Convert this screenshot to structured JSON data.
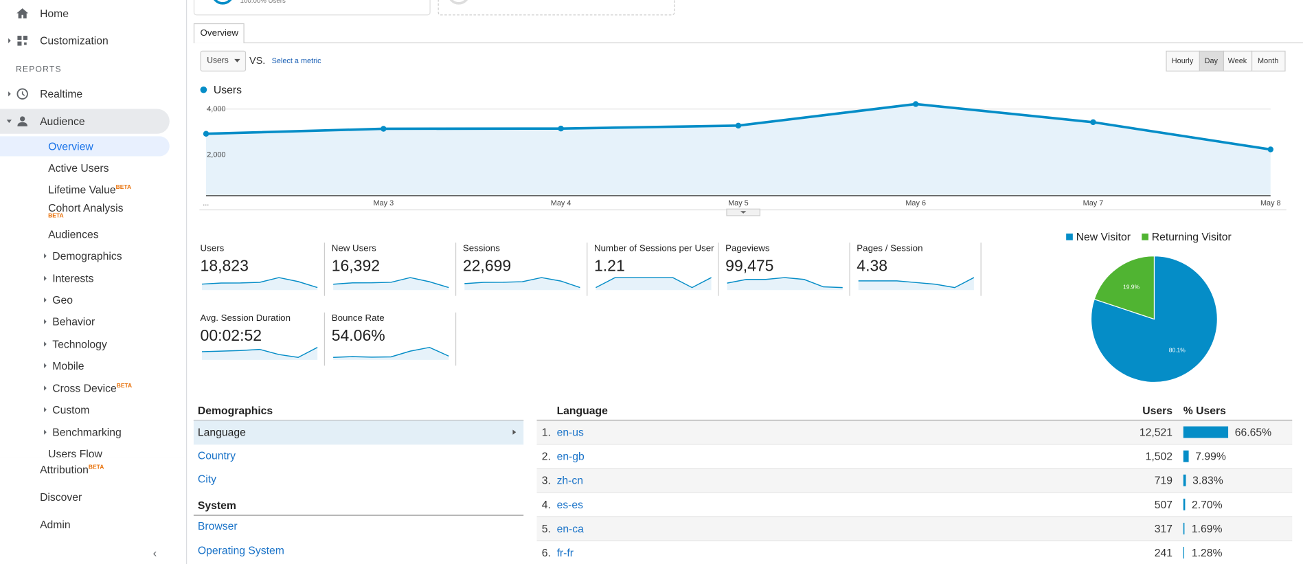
{
  "sidebar": {
    "items": [
      {
        "label": "Home"
      },
      {
        "label": "Customization"
      },
      {
        "label": "REPORTS"
      },
      {
        "label": "Realtime"
      },
      {
        "label": "Audience"
      },
      {
        "label": "Overview"
      },
      {
        "label": "Active Users"
      },
      {
        "label": "Lifetime Value",
        "badge": "BETA"
      },
      {
        "label": "Cohort Analysis",
        "badge": "BETA"
      },
      {
        "label": "Audiences"
      },
      {
        "label": "Demographics"
      },
      {
        "label": "Interests"
      },
      {
        "label": "Geo"
      },
      {
        "label": "Behavior"
      },
      {
        "label": "Technology"
      },
      {
        "label": "Mobile"
      },
      {
        "label": "Cross Device",
        "badge": "BETA"
      },
      {
        "label": "Custom"
      },
      {
        "label": "Benchmarking"
      },
      {
        "label": "Users Flow"
      },
      {
        "label": "Attribution",
        "badge": "BETA"
      },
      {
        "label": "Discover"
      },
      {
        "label": "Admin"
      }
    ]
  },
  "top_card": {
    "text": "100.00% Users"
  },
  "tab": "Overview",
  "controls": {
    "metric": "Users",
    "vs": "VS.",
    "select_metric": "Select a metric",
    "granularity": [
      "Hourly",
      "Day",
      "Week",
      "Month"
    ],
    "active_index": 1
  },
  "chart_data": [
    {
      "type": "line",
      "categories": [
        "...",
        "May 3",
        "May 4",
        "May 5",
        "May 6",
        "May 7",
        "May 8"
      ],
      "series": [
        {
          "name": "Users",
          "color": "#058dc7",
          "values": [
            2910,
            3130,
            3140,
            3270,
            4220,
            3420,
            2220
          ]
        }
      ],
      "ylim": [
        200,
        4300
      ],
      "yticks": [
        {
          "value": 2000,
          "label": "2,000"
        },
        {
          "value": 4000,
          "label": "4,000"
        }
      ],
      "grid": true
    },
    {
      "type": "pie",
      "categories": [
        "New Visitor",
        "Returning Visitor"
      ],
      "colors": [
        "#058dc7",
        "#50b432"
      ],
      "values": [
        80.1,
        19.9
      ],
      "value_labels": [
        "80.1%",
        "19.9%"
      ],
      "legend": "top"
    }
  ],
  "metrics": [
    {
      "label": "Users",
      "value": "18,823",
      "trend": [
        2910,
        3130,
        3140,
        3270,
        4220,
        3420,
        2220
      ]
    },
    {
      "label": "New Users",
      "value": "16,392",
      "trend": [
        2500,
        2750,
        2760,
        2850,
        3700,
        2950,
        1900
      ]
    },
    {
      "label": "Sessions",
      "value": "22,699",
      "trend": [
        3500,
        3800,
        3820,
        3950,
        4900,
        4100,
        2600
      ]
    },
    {
      "label": "Number of Sessions per User",
      "value": "1.21",
      "trend": [
        1.2,
        1.21,
        1.21,
        1.21,
        1.21,
        1.2,
        1.21
      ]
    },
    {
      "label": "Pageviews",
      "value": "99,475",
      "trend": [
        15000,
        16000,
        16000,
        16500,
        16000,
        14000,
        13800
      ]
    },
    {
      "label": "Pages / Session",
      "value": "4.38",
      "trend": [
        4.4,
        4.4,
        4.4,
        4.3,
        4.2,
        4.0,
        4.6
      ]
    },
    {
      "label": "Avg. Session Duration",
      "value": "00:02:52",
      "trend": [
        160,
        162,
        164,
        168,
        150,
        140,
        175
      ]
    },
    {
      "label": "Bounce Rate",
      "value": "54.06%",
      "trend": [
        53.5,
        53.8,
        53.6,
        53.7,
        56,
        57.5,
        54
      ]
    }
  ],
  "dimensions": {
    "groups": [
      {
        "title": "Demographics",
        "items": [
          "Language",
          "Country",
          "City"
        ]
      },
      {
        "title": "System",
        "items": [
          "Browser",
          "Operating System"
        ]
      }
    ]
  },
  "language_table": {
    "header": [
      "Language",
      "Users",
      "% Users"
    ],
    "rows": [
      {
        "rank": "1.",
        "language": "en-us",
        "users": "12,521",
        "share": 66.65,
        "share_label": "66.65%"
      },
      {
        "rank": "2.",
        "language": "en-gb",
        "users": "1,502",
        "share": 7.99,
        "share_label": "7.99%"
      },
      {
        "rank": "3.",
        "language": "zh-cn",
        "users": "719",
        "share": 3.83,
        "share_label": "3.83%"
      },
      {
        "rank": "4.",
        "language": "es-es",
        "users": "507",
        "share": 2.7,
        "share_label": "2.70%"
      },
      {
        "rank": "5.",
        "language": "en-ca",
        "users": "317",
        "share": 1.69,
        "share_label": "1.69%"
      },
      {
        "rank": "6.",
        "language": "fr-fr",
        "users": "241",
        "share": 1.28,
        "share_label": "1.28%"
      }
    ]
  }
}
